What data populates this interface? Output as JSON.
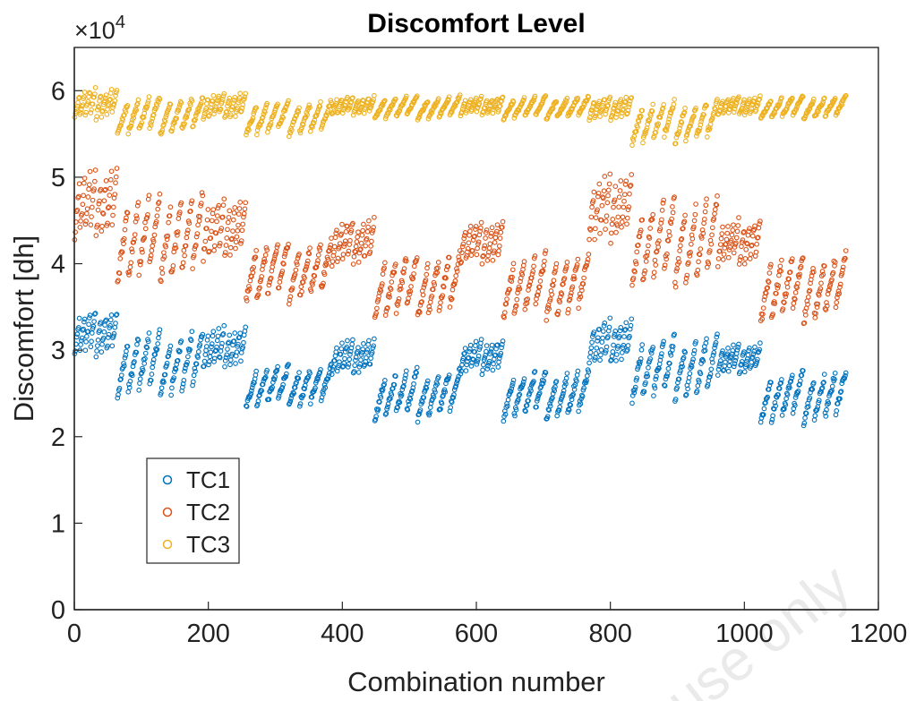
{
  "watermark": "use only",
  "chart_data": {
    "type": "scatter",
    "title": "Discomfort Level",
    "xlabel": "Combination number",
    "ylabel": "Discomfort [dh]",
    "y_exponent": "×10",
    "y_exponent_power": "4",
    "xlim": [
      0,
      1200
    ],
    "ylim": [
      0,
      65000
    ],
    "xticks": [
      0,
      200,
      400,
      600,
      800,
      1000,
      1200
    ],
    "xtick_labels": [
      "0",
      "200",
      "400",
      "600",
      "800",
      "1000",
      "1200"
    ],
    "yticks": [
      0,
      10000,
      20000,
      30000,
      40000,
      50000,
      60000
    ],
    "ytick_labels": [
      "0",
      "1",
      "2",
      "3",
      "4",
      "5",
      "6"
    ],
    "grid": false,
    "legend_position": "lower-left",
    "n_points_per_series": 1152,
    "series": [
      {
        "name": "TC1",
        "color": "#0072BD",
        "segments": [
          {
            "x_start": 0,
            "x_end": 64,
            "y_low": 29000,
            "y_high": 35000
          },
          {
            "x_start": 64,
            "x_end": 192,
            "y_low": 24000,
            "y_high": 32500
          },
          {
            "x_start": 192,
            "x_end": 256,
            "y_low": 27500,
            "y_high": 33000
          },
          {
            "x_start": 256,
            "x_end": 384,
            "y_low": 23000,
            "y_high": 28500
          },
          {
            "x_start": 384,
            "x_end": 448,
            "y_low": 27000,
            "y_high": 31500
          },
          {
            "x_start": 448,
            "x_end": 576,
            "y_low": 21500,
            "y_high": 28000
          },
          {
            "x_start": 576,
            "x_end": 640,
            "y_low": 27000,
            "y_high": 31500
          },
          {
            "x_start": 640,
            "x_end": 768,
            "y_low": 21500,
            "y_high": 28000
          },
          {
            "x_start": 768,
            "x_end": 832,
            "y_low": 28000,
            "y_high": 34000
          },
          {
            "x_start": 832,
            "x_end": 960,
            "y_low": 23500,
            "y_high": 32000
          },
          {
            "x_start": 960,
            "x_end": 1024,
            "y_low": 27000,
            "y_high": 31000
          },
          {
            "x_start": 1024,
            "x_end": 1152,
            "y_low": 21000,
            "y_high": 28000
          }
        ]
      },
      {
        "name": "TC2",
        "color": "#D95319",
        "segments": [
          {
            "x_start": 0,
            "x_end": 64,
            "y_low": 42500,
            "y_high": 51500
          },
          {
            "x_start": 64,
            "x_end": 192,
            "y_low": 37000,
            "y_high": 48500
          },
          {
            "x_start": 192,
            "x_end": 256,
            "y_low": 40000,
            "y_high": 48000
          },
          {
            "x_start": 256,
            "x_end": 384,
            "y_low": 35000,
            "y_high": 43000
          },
          {
            "x_start": 384,
            "x_end": 448,
            "y_low": 39500,
            "y_high": 45500
          },
          {
            "x_start": 448,
            "x_end": 576,
            "y_low": 33000,
            "y_high": 41500
          },
          {
            "x_start": 576,
            "x_end": 640,
            "y_low": 39500,
            "y_high": 45500
          },
          {
            "x_start": 640,
            "x_end": 768,
            "y_low": 33000,
            "y_high": 41500
          },
          {
            "x_start": 768,
            "x_end": 832,
            "y_low": 42000,
            "y_high": 51000
          },
          {
            "x_start": 832,
            "x_end": 960,
            "y_low": 36500,
            "y_high": 48000
          },
          {
            "x_start": 960,
            "x_end": 1024,
            "y_low": 39500,
            "y_high": 45500
          },
          {
            "x_start": 1024,
            "x_end": 1152,
            "y_low": 32500,
            "y_high": 41500
          }
        ]
      },
      {
        "name": "TC3",
        "color": "#EDB120",
        "segments": [
          {
            "x_start": 0,
            "x_end": 64,
            "y_low": 56500,
            "y_high": 60500
          },
          {
            "x_start": 64,
            "x_end": 192,
            "y_low": 54500,
            "y_high": 59500
          },
          {
            "x_start": 192,
            "x_end": 256,
            "y_low": 56500,
            "y_high": 60000
          },
          {
            "x_start": 256,
            "x_end": 384,
            "y_low": 54500,
            "y_high": 59000
          },
          {
            "x_start": 384,
            "x_end": 448,
            "y_low": 57000,
            "y_high": 59500
          },
          {
            "x_start": 448,
            "x_end": 576,
            "y_low": 56500,
            "y_high": 59500
          },
          {
            "x_start": 576,
            "x_end": 640,
            "y_low": 57000,
            "y_high": 59500
          },
          {
            "x_start": 640,
            "x_end": 768,
            "y_low": 56500,
            "y_high": 59500
          },
          {
            "x_start": 768,
            "x_end": 832,
            "y_low": 56500,
            "y_high": 59500
          },
          {
            "x_start": 832,
            "x_end": 960,
            "y_low": 53500,
            "y_high": 59000
          },
          {
            "x_start": 960,
            "x_end": 1024,
            "y_low": 57000,
            "y_high": 59500
          },
          {
            "x_start": 1024,
            "x_end": 1152,
            "y_low": 56500,
            "y_high": 59500
          }
        ]
      }
    ]
  }
}
